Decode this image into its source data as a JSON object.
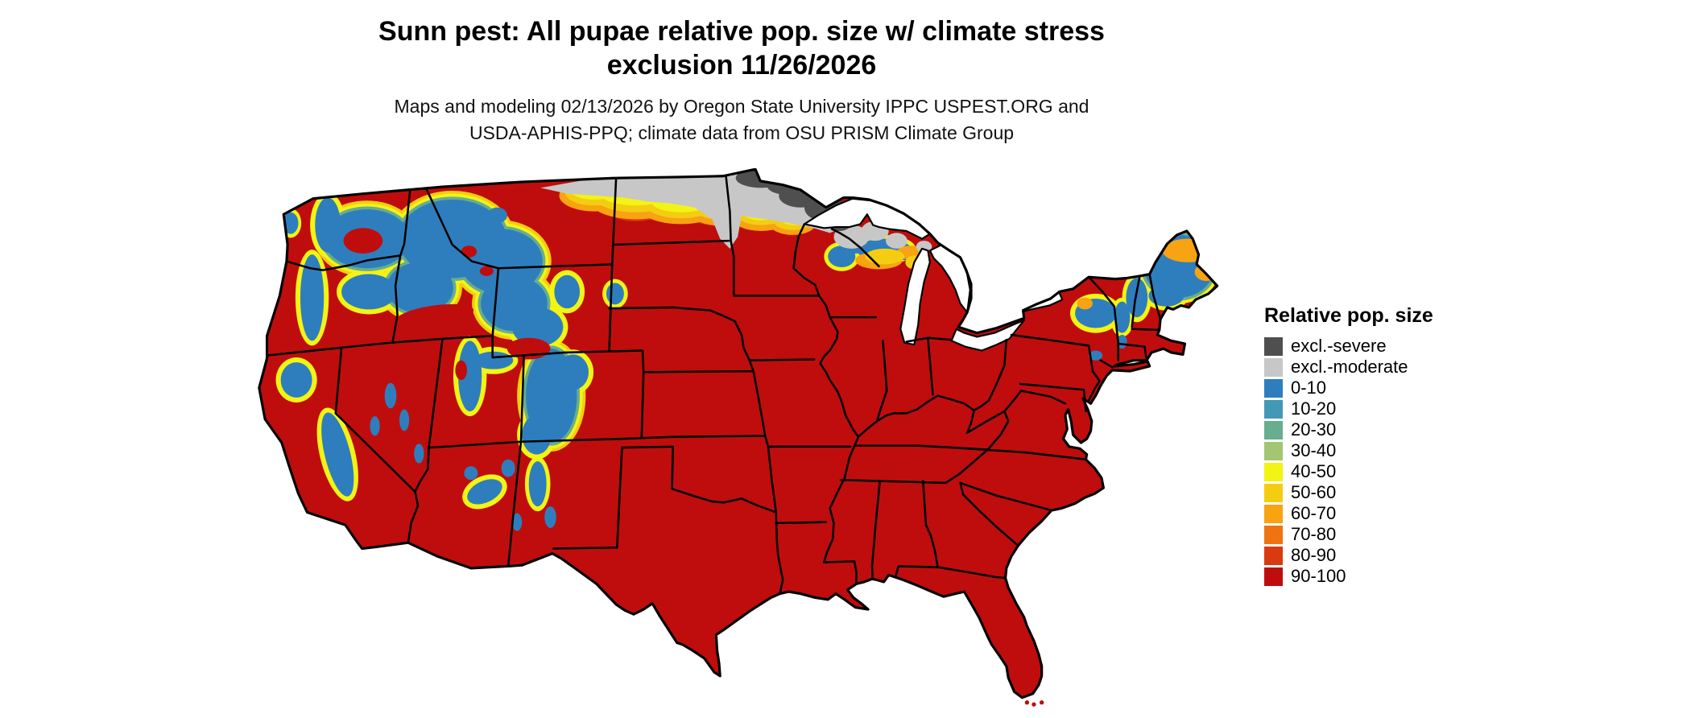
{
  "header": {
    "title_line1": "Sunn pest: All pupae relative pop. size w/ climate stress",
    "title_line2": "exclusion 11/26/2026",
    "subtitle_line1": "Maps and modeling 02/13/2026 by Oregon State University IPPC USPEST.ORG and",
    "subtitle_line2": "USDA-APHIS-PPQ; climate data from OSU PRISM Climate Group"
  },
  "map": {
    "label": "Continental United States map of Sunn pest all pupae relative population size with climate stress exclusion"
  },
  "legend": {
    "title": "Relative pop. size",
    "items": [
      {
        "label": "excl.-severe",
        "color": "#4f4f4f"
      },
      {
        "label": "excl.-moderate",
        "color": "#c7c7c7"
      },
      {
        "label": "0-10",
        "color": "#2e7ebe"
      },
      {
        "label": "10-20",
        "color": "#4398b6"
      },
      {
        "label": "20-30",
        "color": "#67ad8f"
      },
      {
        "label": "30-40",
        "color": "#a2c671"
      },
      {
        "label": "40-50",
        "color": "#f2f414"
      },
      {
        "label": "50-60",
        "color": "#f4cd12"
      },
      {
        "label": "60-70",
        "color": "#f7a312"
      },
      {
        "label": "70-80",
        "color": "#ee7412"
      },
      {
        "label": "80-90",
        "color": "#d93a10"
      },
      {
        "label": "90-100",
        "color": "#bf0d0d"
      }
    ]
  }
}
